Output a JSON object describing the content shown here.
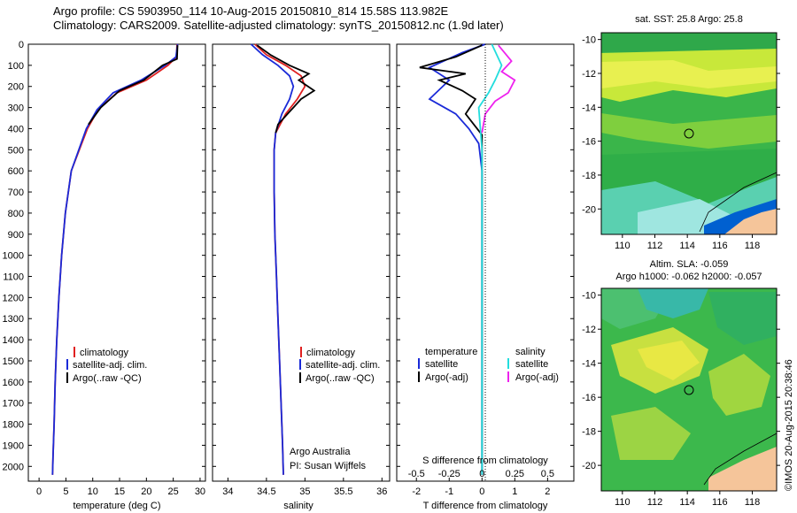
{
  "header": {
    "line1": "Argo profile: CS 5903950_114 10-Aug-2015 20150810_814 15.58S 113.982E",
    "line2": "Climatology: CARS2009. Satellite-adjusted climatology: synTS_20150812.nc (1.9d later)"
  },
  "colors": {
    "climatology": "#e02020",
    "satellite": "#1a2ad8",
    "argo": "#000000",
    "sal_satellite": "#22dddd",
    "sal_argo": "#ee22ee",
    "land": "#f5c59a"
  },
  "depth_ticks": [
    "0",
    "100",
    "200",
    "300",
    "400",
    "500",
    "600",
    "700",
    "800",
    "900",
    "1000",
    "1100",
    "1200",
    "1300",
    "1400",
    "1500",
    "1600",
    "1700",
    "1800",
    "1900",
    "2000"
  ],
  "panel_temp": {
    "xlabel": "temperature (deg C)",
    "xticks": [
      "0",
      "5",
      "10",
      "15",
      "20",
      "25",
      "30"
    ],
    "legend": [
      "climatology",
      "satellite-adj. clim.",
      "Argo(..raw -QC)"
    ]
  },
  "panel_sal": {
    "xlabel": "salinity",
    "xticks": [
      "34",
      "34.5",
      "35",
      "35.5",
      "36"
    ],
    "legend": [
      "climatology",
      "satellite-adj. clim.",
      "Argo(..raw -QC)"
    ],
    "note1": "Argo Australia",
    "note2": "PI: Susan Wijffels"
  },
  "panel_diff": {
    "xlabel": "T difference from climatology",
    "xticks_t": [
      "-2",
      "-1",
      "0",
      "1",
      "2"
    ],
    "top_label": "S difference from climatology",
    "xticks_s": [
      "-0.5",
      "-0.25",
      "0",
      "0.25",
      "0.5"
    ],
    "legend_t_title": "temperature",
    "legend_s_title": "salinity",
    "legend_t": [
      "satellite",
      "Argo(-adj)"
    ],
    "legend_s": [
      "satellite",
      "Argo(-adj)"
    ]
  },
  "map_sst": {
    "title": "sat. SST: 25.8  Argo: 25.8",
    "yticks": [
      "-10",
      "-12",
      "-14",
      "-16",
      "-18",
      "-20"
    ],
    "xticks": [
      "110",
      "112",
      "114",
      "116",
      "118"
    ]
  },
  "map_sla": {
    "title1": "Altim. SLA: -0.059",
    "title2": "Argo h1000: -0.062 h2000: -0.057",
    "yticks": [
      "-10",
      "-12",
      "-14",
      "-16",
      "-18",
      "-20"
    ],
    "xticks": [
      "110",
      "112",
      "114",
      "116",
      "118"
    ]
  },
  "credit": "©IMOS 20-Aug-2015 20:38:46",
  "chart_data": [
    {
      "type": "line",
      "xlabel": "temperature (deg C)",
      "ylabel": "",
      "xlim": [
        -2,
        31
      ],
      "ylim": [
        2070,
        0
      ],
      "series": [
        {
          "name": "climatology",
          "x": [
            25.7,
            25.6,
            24.0,
            20.0,
            14.5,
            11.0,
            9.0,
            7.5,
            6.0,
            4.9,
            4.2,
            3.7,
            3.3,
            3.0,
            2.8,
            2.6,
            2.5
          ],
          "y": [
            0,
            60,
            100,
            170,
            230,
            310,
            400,
            500,
            600,
            800,
            1000,
            1200,
            1400,
            1600,
            1800,
            1950,
            2040
          ]
        },
        {
          "name": "satellite-adj. clim.",
          "x": [
            25.8,
            25.5,
            23.5,
            19.0,
            13.8,
            10.8,
            8.8,
            7.4,
            6.0,
            4.9,
            4.2,
            3.7,
            3.3,
            3.0,
            2.8,
            2.6,
            2.5
          ],
          "y": [
            0,
            60,
            100,
            170,
            230,
            310,
            400,
            500,
            600,
            800,
            1000,
            1200,
            1400,
            1600,
            1800,
            1950,
            2040
          ]
        },
        {
          "name": "Argo(..raw -QC)",
          "x": [
            25.8,
            25.7,
            23.0,
            19.5,
            15.0,
            11.5,
            9.2
          ],
          "y": [
            5,
            70,
            100,
            170,
            220,
            300,
            380
          ]
        }
      ]
    },
    {
      "type": "line",
      "xlabel": "salinity",
      "xlim": [
        33.8,
        36.1
      ],
      "ylim": [
        2070,
        0
      ],
      "series": [
        {
          "name": "climatology",
          "x": [
            34.35,
            34.5,
            34.75,
            34.95,
            35.0,
            34.9,
            34.75,
            34.62,
            34.6,
            34.6,
            34.61,
            34.63,
            34.65,
            34.67,
            34.69,
            34.71,
            34.72
          ],
          "y": [
            0,
            50,
            100,
            150,
            200,
            260,
            330,
            420,
            500,
            700,
            900,
            1100,
            1300,
            1500,
            1700,
            1900,
            2040
          ]
        },
        {
          "name": "satellite-adj. clim.",
          "x": [
            34.3,
            34.45,
            34.65,
            34.8,
            34.85,
            34.8,
            34.7,
            34.62,
            34.6,
            34.6,
            34.61,
            34.63,
            34.65,
            34.67,
            34.69,
            34.71,
            34.72
          ],
          "y": [
            0,
            50,
            100,
            150,
            200,
            260,
            330,
            420,
            500,
            700,
            900,
            1100,
            1300,
            1500,
            1700,
            1900,
            2040
          ]
        },
        {
          "name": "Argo(..raw -QC)",
          "x": [
            34.38,
            34.55,
            34.8,
            35.05,
            34.92,
            35.12,
            34.95,
            34.85,
            34.75,
            34.65,
            34.62
          ],
          "y": [
            5,
            50,
            100,
            140,
            170,
            220,
            260,
            300,
            340,
            380,
            420
          ]
        }
      ]
    },
    {
      "type": "line",
      "xlabel": "T difference from climatology",
      "xlim": [
        -2.6,
        2.8
      ],
      "ylim": [
        2070,
        0
      ],
      "series": [
        {
          "name": "satellite",
          "x": [
            0.1,
            -0.6,
            -1.6,
            -1.0,
            -1.6,
            -0.8,
            -0.4,
            -0.1,
            0.0,
            0.0
          ],
          "y": [
            0,
            40,
            110,
            170,
            260,
            330,
            400,
            470,
            600,
            2040
          ]
        },
        {
          "name": "Argo(-adj)",
          "x": [
            0.0,
            -0.8,
            -1.9,
            -0.5,
            -1.3,
            -0.6,
            -0.2,
            -0.5,
            0.0,
            0.0
          ],
          "y": [
            5,
            60,
            110,
            140,
            170,
            220,
            260,
            330,
            430,
            2040
          ]
        },
        {
          "name": "salinity satellite",
          "x": [
            0.3,
            0.6,
            0.4,
            0.2,
            -0.1,
            0.0,
            0.0
          ],
          "y": [
            0,
            100,
            170,
            230,
            300,
            500,
            2040
          ]
        },
        {
          "name": "salinity Argo(-adj)",
          "x": [
            0.5,
            0.9,
            0.6,
            1.0,
            0.8,
            0.4,
            0.1,
            0.0
          ],
          "y": [
            5,
            80,
            130,
            170,
            230,
            270,
            330,
            420
          ]
        }
      ]
    }
  ]
}
